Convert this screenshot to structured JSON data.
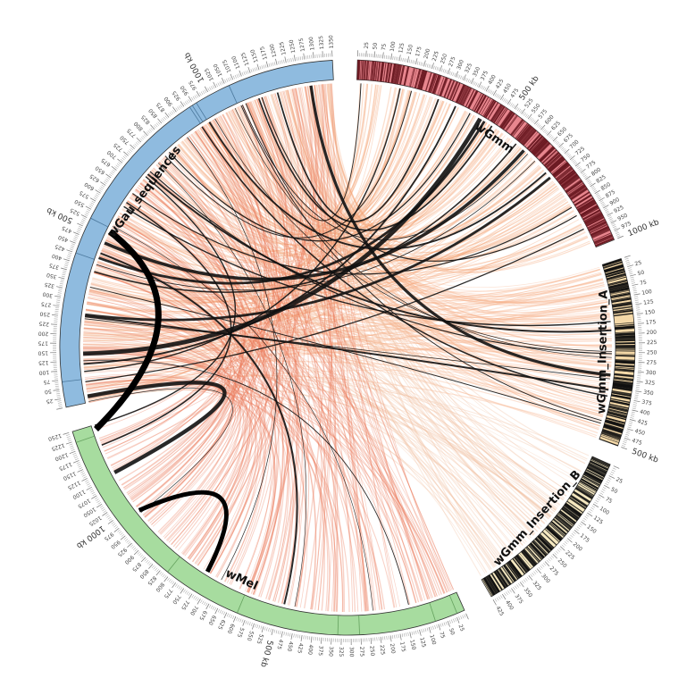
{
  "segments": [
    {
      "id": "wGmm",
      "label": "wGmm",
      "color": "#e8868e",
      "band_color": "#6b1a22",
      "length_kb": 1000,
      "start_deg": 2,
      "end_deg": 68,
      "major_labels": [
        "500 kb",
        "1000 kb"
      ],
      "tick_labels": [
        "25",
        "50",
        "75",
        "100",
        "125",
        "150",
        "175",
        "200",
        "225",
        "250",
        "275",
        "300",
        "325",
        "350",
        "375",
        "400",
        "425",
        "450",
        "475",
        "500 kb",
        "525",
        "550",
        "575",
        "600",
        "625",
        "650",
        "675",
        "700",
        "725",
        "750",
        "775",
        "800",
        "825",
        "850",
        "875",
        "900",
        "925",
        "950",
        "975",
        "1000 kb"
      ]
    },
    {
      "id": "wGmm_Insertion_A",
      "label": "wGmm_Insertion_A",
      "color": "#f5d9a8",
      "band_color": "#111111",
      "length_kb": 500,
      "start_deg": 72,
      "end_deg": 110,
      "major_labels": [
        "500 kb"
      ],
      "tick_labels": [
        "25",
        "50",
        "75",
        "100",
        "125",
        "150",
        "175",
        "200",
        "225",
        "250",
        "275",
        "300",
        "325",
        "350",
        "375",
        "400",
        "425",
        "450",
        "475",
        "500 kb"
      ]
    },
    {
      "id": "wGmm_Insertion_B",
      "label": "wGmm_Insertion_B",
      "color": "#f5e8c0",
      "band_color": "#111111",
      "length_kb": 425,
      "start_deg": 114,
      "end_deg": 150,
      "major_labels": [],
      "tick_labels": [
        "25",
        "50",
        "75",
        "100",
        "125",
        "150",
        "175",
        "200",
        "225",
        "250",
        "275",
        "300",
        "325",
        "350",
        "375",
        "400",
        "425"
      ]
    },
    {
      "id": "wMel",
      "label": "wMel",
      "color": "#a7dc9f",
      "band_color": "#4a8a44",
      "length_kb": 1275,
      "start_deg": 156,
      "end_deg": 253,
      "major_labels": [
        "500 kb",
        "1000 kb"
      ],
      "tick_labels": [
        "25",
        "50",
        "75",
        "100",
        "125",
        "150",
        "175",
        "200",
        "225",
        "250",
        "275",
        "300",
        "325",
        "350",
        "375",
        "400",
        "425",
        "450",
        "475",
        "500 kb",
        "525",
        "550",
        "575",
        "600",
        "625",
        "650",
        "675",
        "700",
        "725",
        "750",
        "775",
        "800",
        "825",
        "850",
        "875",
        "900",
        "925",
        "950",
        "975",
        "1000 kb",
        "1025",
        "1050",
        "1075",
        "1100",
        "1125",
        "1150",
        "1175",
        "1200",
        "1225",
        "1250"
      ]
    },
    {
      "id": "wGau_sequences",
      "label": "wGau_sequences",
      "color": "#8fbbdf",
      "band_color": "#2f5c82",
      "length_kb": 1350,
      "start_deg": 258,
      "end_deg": 357,
      "major_labels": [
        "500 kb",
        "1000 kb"
      ],
      "tick_labels": [
        "25",
        "50",
        "75",
        "100",
        "125",
        "150",
        "175",
        "200",
        "225",
        "250",
        "275",
        "300",
        "325",
        "350",
        "375",
        "400",
        "425",
        "450",
        "475",
        "500 kb",
        "525",
        "550",
        "575",
        "600",
        "625",
        "650",
        "675",
        "700",
        "725",
        "750",
        "775",
        "800",
        "825",
        "850",
        "875",
        "900",
        "925",
        "950",
        "975",
        "1000 kb",
        "1025",
        "1050",
        "1075",
        "1100",
        "1125",
        "1150",
        "1175",
        "1200",
        "1225",
        "1250",
        "1275",
        "1300",
        "1325",
        "1350"
      ]
    }
  ],
  "link_colors": {
    "wGmm": "#f4a070",
    "wGmm_Insertion_A": "#f7b088",
    "wGmm_Insertion_B": "#f2c0a0",
    "wMel": "#ec7a5c",
    "highlight": "#111111"
  },
  "links_seed": 7
}
